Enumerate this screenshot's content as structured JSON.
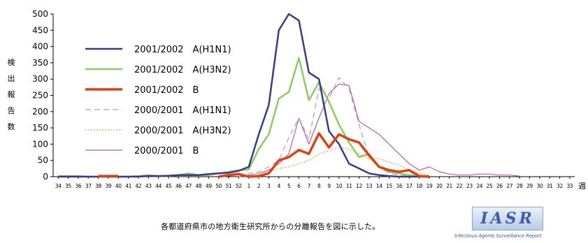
{
  "chart_data": {
    "type": "line",
    "ylabel": "検出報告数",
    "xlabel": "週",
    "ylim": [
      0,
      500
    ],
    "yticks": [
      0,
      50,
      100,
      150,
      200,
      250,
      300,
      350,
      400,
      450,
      500
    ],
    "categories": [
      "34",
      "35",
      "36",
      "37",
      "38",
      "39",
      "40",
      "41",
      "42",
      "43",
      "44",
      "45",
      "46",
      "47",
      "48",
      "49",
      "50",
      "51",
      "52",
      "1",
      "2",
      "3",
      "4",
      "5",
      "6",
      "7",
      "8",
      "9",
      "10",
      "11",
      "12",
      "13",
      "14",
      "15",
      "16",
      "17",
      "18",
      "19",
      "20",
      "21",
      "22",
      "23",
      "24",
      "25",
      "26",
      "27",
      "28",
      "29",
      "30",
      "31",
      "32",
      "33"
    ],
    "legend_position": "upper-left",
    "grid": false,
    "series": [
      {
        "name": "2001/2002　A(H1N1)",
        "color": "#3a3a8c",
        "width": 2.5,
        "dash": "",
        "values": [
          0,
          0,
          0,
          0,
          0,
          0,
          0,
          0,
          0,
          2,
          2,
          3,
          5,
          5,
          5,
          8,
          10,
          12,
          18,
          30,
          130,
          220,
          450,
          500,
          480,
          320,
          300,
          140,
          100,
          40,
          25,
          10,
          5,
          2,
          0,
          0,
          0,
          0,
          null,
          null,
          null,
          null,
          null,
          null,
          null,
          null,
          null,
          null,
          null,
          null,
          null,
          null
        ]
      },
      {
        "name": "2001/2002　A(H3N2)",
        "color": "#8ccc60",
        "width": 2.5,
        "dash": "",
        "values": [
          2,
          2,
          2,
          0,
          0,
          0,
          0,
          0,
          2,
          5,
          2,
          2,
          5,
          10,
          5,
          5,
          10,
          15,
          20,
          22,
          85,
          130,
          240,
          260,
          365,
          235,
          290,
          230,
          160,
          105,
          60,
          70,
          30,
          15,
          10,
          5,
          2,
          0,
          null,
          null,
          null,
          null,
          null,
          null,
          null,
          null,
          null,
          null,
          null,
          null,
          null,
          null
        ]
      },
      {
        "name": "2001/2002　B",
        "color": "#e04010",
        "width": 3.5,
        "dash": "",
        "values": [
          null,
          null,
          null,
          null,
          2,
          2,
          2,
          null,
          null,
          null,
          null,
          null,
          null,
          null,
          null,
          null,
          0,
          5,
          8,
          0,
          2,
          10,
          50,
          60,
          82,
          70,
          133,
          90,
          130,
          115,
          105,
          65,
          30,
          20,
          15,
          20,
          2,
          0,
          null,
          null,
          null,
          null,
          null,
          null,
          null,
          null,
          null,
          null,
          null,
          null,
          null,
          null
        ]
      },
      {
        "name": "2000/2001　A(H1N1)",
        "color": "#9aa0d8",
        "width": 1.2,
        "dash": "8,5",
        "values": [
          null,
          null,
          null,
          null,
          null,
          null,
          null,
          null,
          null,
          null,
          null,
          null,
          null,
          null,
          null,
          null,
          null,
          null,
          0,
          10,
          15,
          30,
          50,
          120,
          180,
          115,
          270,
          240,
          305,
          270,
          160,
          60,
          30,
          10,
          5,
          2,
          0,
          0,
          null,
          null,
          null,
          null,
          null,
          null,
          null,
          null,
          null,
          null,
          null,
          null,
          null,
          null
        ]
      },
      {
        "name": "2000/2001　A(H3N2)",
        "color": "#f0a040",
        "width": 1.2,
        "dash": "2,2",
        "values": [
          null,
          null,
          null,
          null,
          null,
          null,
          null,
          null,
          null,
          null,
          null,
          null,
          null,
          null,
          null,
          null,
          null,
          null,
          0,
          5,
          10,
          15,
          25,
          30,
          40,
          50,
          70,
          80,
          90,
          85,
          70,
          55,
          55,
          45,
          35,
          20,
          10,
          5,
          null,
          null,
          null,
          null,
          null,
          null,
          null,
          null,
          null,
          null,
          null,
          null,
          null,
          null
        ]
      },
      {
        "name": "2000/2001　B",
        "color": "#b85ca8",
        "width": 1.2,
        "dash": "",
        "values": [
          null,
          null,
          null,
          null,
          null,
          null,
          null,
          null,
          null,
          null,
          null,
          null,
          null,
          null,
          null,
          null,
          null,
          null,
          0,
          5,
          10,
          20,
          40,
          70,
          180,
          100,
          180,
          255,
          285,
          280,
          170,
          150,
          130,
          100,
          70,
          40,
          20,
          30,
          15,
          8,
          5,
          5,
          8,
          8,
          5,
          5,
          2,
          null,
          null,
          null,
          null,
          null
        ]
      }
    ]
  },
  "footer": {
    "caption": "各都道府県市の地方衛生研究所からの分離報告を図に示した。",
    "logo_text": "IASR",
    "logo_subtitle": "Infectious Agents Surveillance Report"
  }
}
